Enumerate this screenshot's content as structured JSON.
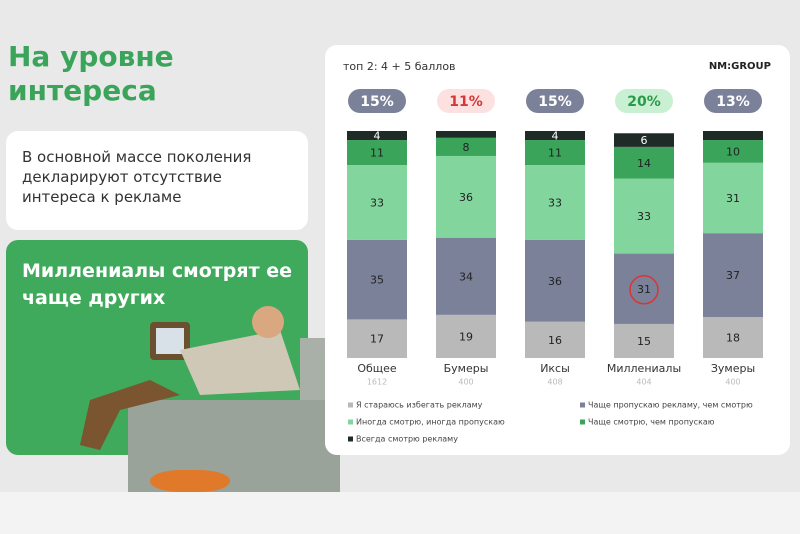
{
  "slide": {
    "title": "На уровне интереса",
    "card_text": "В основной массе поколения декларируют отсутствие интереса к рекламе",
    "highlight_text": "Миллениалы смотрят ее чаще других",
    "subtitle": "топ 2: 4 + 5 баллов",
    "logo": "NM:GROUP"
  },
  "chart_data": {
    "type": "stacked_bar",
    "categories": [
      "Общее",
      "Бумеры",
      "Иксы",
      "Миллениалы",
      "Зумеры"
    ],
    "bases": [
      "1612",
      "400",
      "408",
      "404",
      "400"
    ],
    "top2": [
      15,
      11,
      15,
      20,
      13
    ],
    "top2_labels": [
      "15%",
      "11%",
      "15%",
      "20%",
      "13%"
    ],
    "top2_colors": [
      "#7b8199",
      "#fde1e1",
      "#7b8199",
      "#c9f0d2",
      "#7b8199"
    ],
    "top2_text_colors": [
      "#ffffff",
      "#d33838",
      "#ffffff",
      "#2a9a4a",
      "#ffffff"
    ],
    "ylim": [
      0,
      100
    ],
    "series": [
      {
        "name": "Я стараюсь избегать рекламу",
        "color": "#b9b9b9",
        "values": [
          17,
          19,
          16,
          15,
          18
        ]
      },
      {
        "name": "Чаще пропускаю рекламу, чем смотрю",
        "color": "#7b8199",
        "values": [
          35,
          34,
          36,
          31,
          37
        ]
      },
      {
        "name": "Иногда смотрю, иногда пропускаю",
        "color": "#82d69d",
        "values": [
          33,
          36,
          33,
          33,
          31
        ]
      },
      {
        "name": "Чаще смотрю, чем пропускаю",
        "color": "#3aa55a",
        "values": [
          11,
          8,
          11,
          14,
          10
        ]
      },
      {
        "name": "Всегда смотрю рекламу",
        "color": "#1f2b27",
        "values": [
          4,
          3,
          4,
          6,
          4
        ],
        "value_labels": [
          "4",
          null,
          "4",
          "6",
          null
        ]
      }
    ]
  }
}
